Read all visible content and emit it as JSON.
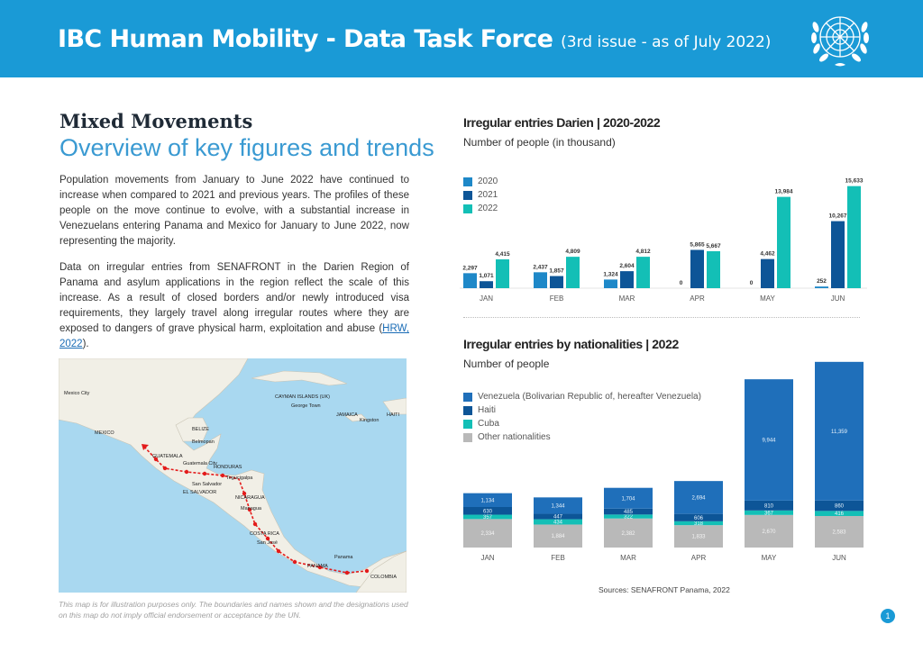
{
  "header": {
    "title": "IBC Human Mobility - Data Task Force",
    "subtitle": "(3rd issue - as of July 2022)"
  },
  "left": {
    "heading": "Mixed Movements",
    "subheading": "Overview of key figures and trends",
    "para1": "Population movements from January to June 2022 have continued to increase when compared to 2021 and previous years. The profiles of these people on the move continue to evolve, with a substantial increase in Venezuelans entering Panama and Mexico for January to June 2022, now representing the majority.",
    "para2_text": "Data on irregular entries from SENAFRONT in the Darien Region of Panama and asylum applications in the region reflect the scale of this increase. As a result of closed borders and/or newly introduced visa requirements, they largely travel along irregular routes where they are exposed to dangers of grave physical harm, exploitation and abuse (",
    "para2_link": "HRW, 2022",
    "para2_end": ").",
    "map_note": "This map is for illustration purposes only. The boundaries and names shown and the designations used on this map do not imply official endorsement or acceptance by the UN."
  },
  "map": {
    "labels": [
      "Mexico City",
      "CAYMAN ISLANDS (UK)",
      "George Town",
      "JAMAICA",
      "Kingston",
      "HAITI",
      "MEXICO",
      "BELIZE",
      "Belmopan",
      "GUATEMALA",
      "Guatemala City",
      "HONDURAS",
      "Tegucigalpa",
      "EL SALVADOR",
      "San Salvador",
      "NICARAGUA",
      "Managua",
      "COSTA RICA",
      "San José",
      "PANAMA",
      "Panama",
      "COLOMBIA"
    ]
  },
  "chart1": {
    "title": "Irregular entries Darien | 2020-2022",
    "subtitle": "Number of people (in thousand)"
  },
  "chart2": {
    "title": "Irregular entries by nationalities | 2022",
    "subtitle": "Number of people"
  },
  "sources": "Sources: SENAFRONT Panama, 2022",
  "page_number": "1",
  "colors": {
    "header": "#1a9ad6",
    "s2020": "#1e88c8",
    "s2021": "#0d5597",
    "s2022": "#13bfb6",
    "venezuela": "#1f6fba",
    "haiti": "#0d5597",
    "cuba": "#13bfb6",
    "other": "#b9b9b9"
  },
  "chart_data": [
    {
      "type": "bar",
      "title": "Irregular entries Darien | 2020-2022",
      "subtitle": "Number of people (in thousand)",
      "categories": [
        "JAN",
        "FEB",
        "MAR",
        "APR",
        "MAY",
        "JUN"
      ],
      "series": [
        {
          "name": "2020",
          "values": [
            2297,
            2437,
            1324,
            0,
            0,
            252
          ],
          "labels": [
            "2,297",
            "2,437",
            "1,324",
            "0",
            "0",
            "252"
          ]
        },
        {
          "name": "2021",
          "values": [
            1071,
            1857,
            2604,
            5865,
            4462,
            10267
          ],
          "labels": [
            "1,071",
            "1,857",
            "2,604",
            "5,865",
            "4,462",
            "10,267"
          ]
        },
        {
          "name": "2022",
          "values": [
            4415,
            4809,
            4812,
            5667,
            13984,
            15633
          ],
          "labels": [
            "4,415",
            "4,809",
            "4,812",
            "5,667",
            "13,984",
            "15,633"
          ]
        }
      ],
      "legend": "top-left",
      "ylim": [
        0,
        16000
      ]
    },
    {
      "type": "bar",
      "stacked": true,
      "title": "Irregular entries by nationalities | 2022",
      "subtitle": "Number of people",
      "categories": [
        "JAN",
        "FEB",
        "MAR",
        "APR",
        "MAY",
        "JUN"
      ],
      "series": [
        {
          "name": "Other nationalities",
          "values": [
            2334,
            1884,
            2382,
            1833,
            2670,
            2583
          ],
          "labels": [
            "2,334",
            "1,884",
            "2,382",
            "1,833",
            "2,670",
            "2,583"
          ]
        },
        {
          "name": "Cuba",
          "values": [
            357,
            434,
            322,
            318,
            367,
            416
          ],
          "labels": [
            "357",
            "434",
            "322",
            "318",
            "367",
            "416"
          ]
        },
        {
          "name": "Haiti",
          "values": [
            630,
            447,
            485,
            606,
            810,
            860
          ],
          "labels": [
            "630",
            "447",
            "485",
            "606",
            "810",
            "860"
          ]
        },
        {
          "name": "Venezuela (Bolivarian Republic of, hereafter Venezuela)",
          "values": [
            1134,
            1344,
            1704,
            2694,
            9944,
            11359
          ],
          "labels": [
            "1,134",
            "1,344",
            "1,704",
            "2,694",
            "9,944",
            "11,359"
          ]
        }
      ],
      "legend": "top-left",
      "ylim": [
        0,
        15500
      ]
    }
  ]
}
